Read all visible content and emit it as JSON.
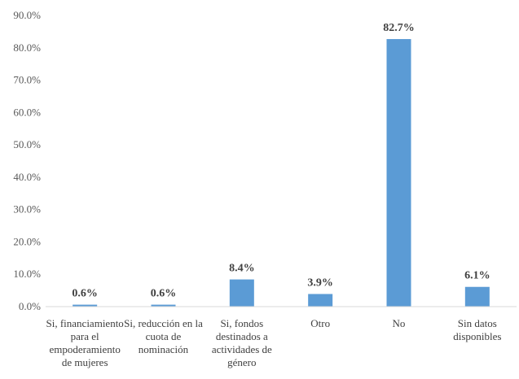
{
  "chart_data": {
    "type": "bar",
    "title": "",
    "xlabel": "",
    "ylabel": "",
    "categories": [
      [
        "Si, financiamiento",
        "para el",
        "empoderamiento",
        "de mujeres"
      ],
      [
        "Si, reducción en la",
        "cuota de",
        "nominación"
      ],
      [
        "Si, fondos",
        "destinados a",
        "actividades de",
        "género"
      ],
      [
        "Otro"
      ],
      [
        "No"
      ],
      [
        "Sin datos",
        "disponibles"
      ]
    ],
    "values": [
      0.6,
      0.6,
      8.4,
      3.9,
      82.7,
      6.1
    ],
    "data_labels": [
      "0.6%",
      "0.6%",
      "8.4%",
      "3.9%",
      "82.7%",
      "6.1%"
    ],
    "ylim": [
      0,
      90
    ],
    "yticks": [
      0,
      10,
      20,
      30,
      40,
      50,
      60,
      70,
      80,
      90
    ],
    "ytick_labels": [
      "0.0%",
      "10.0%",
      "20.0%",
      "30.0%",
      "40.0%",
      "50.0%",
      "60.0%",
      "70.0%",
      "80.0%",
      "90.0%"
    ],
    "grid": false,
    "legend": "none",
    "bar_color": "#5B9BD5",
    "axis_color": "#D9D9D9"
  }
}
